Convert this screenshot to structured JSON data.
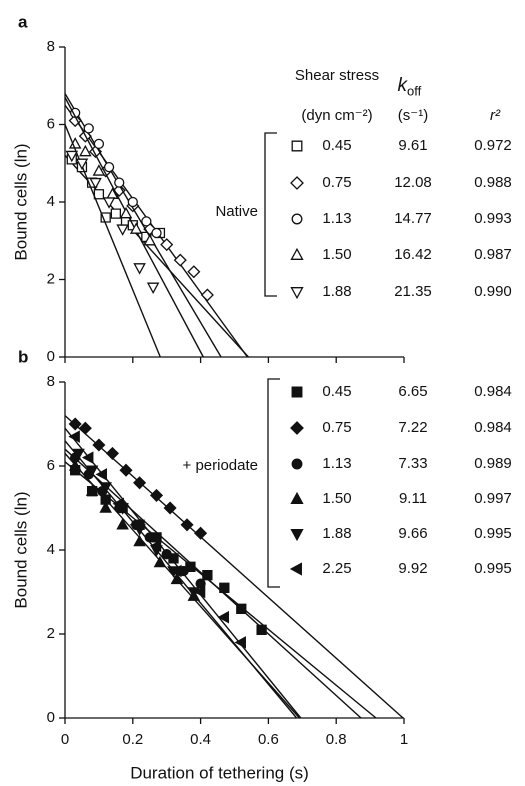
{
  "chart_data": [
    {
      "type": "scatter",
      "panel_label": "a",
      "annotation": "Native",
      "ylabel": "Bound cells (ln)",
      "xlim": [
        0,
        1
      ],
      "ylim": [
        0,
        8
      ],
      "yticks": [
        0,
        2,
        4,
        6,
        8
      ],
      "xticks": [
        0,
        0.2,
        0.4,
        0.6,
        0.8,
        1
      ],
      "xtick_labels": false,
      "filled": false,
      "table_header": {
        "stress": "Shear stress",
        "stress_unit": "(dyn cm⁻²)",
        "koff": "k",
        "koff_sub": "off",
        "koff_unit": "(s⁻¹)",
        "r2": "r²"
      },
      "series": [
        {
          "name": "0.45",
          "marker": "square",
          "color": "#111",
          "koff": 9.61,
          "r2": 0.972,
          "intercept": 5.2,
          "x": [
            0.02,
            0.05,
            0.08,
            0.1,
            0.12,
            0.15,
            0.18,
            0.2,
            0.24,
            0.28
          ],
          "values": [
            5.1,
            4.9,
            4.5,
            4.2,
            3.6,
            3.7,
            3.5,
            3.4,
            3.1,
            3.2
          ]
        },
        {
          "name": "0.75",
          "marker": "diamond",
          "color": "#111",
          "koff": 12.08,
          "r2": 0.988,
          "intercept": 6.5,
          "x": [
            0.03,
            0.06,
            0.09,
            0.12,
            0.16,
            0.2,
            0.25,
            0.3,
            0.34,
            0.38,
            0.42
          ],
          "values": [
            6.1,
            5.7,
            5.3,
            4.8,
            4.3,
            3.9,
            3.3,
            2.9,
            2.5,
            2.2,
            1.6
          ]
        },
        {
          "name": "1.13",
          "marker": "circle",
          "color": "#111",
          "koff": 14.77,
          "r2": 0.993,
          "intercept": 6.8,
          "x": [
            0.03,
            0.07,
            0.1,
            0.13,
            0.16,
            0.2,
            0.24,
            0.27
          ],
          "values": [
            6.3,
            5.9,
            5.5,
            4.9,
            4.5,
            4.0,
            3.5,
            3.2
          ]
        },
        {
          "name": {
            "value": 1.5,
            "label": "1.50"
          },
          "marker": "triangle-up",
          "color": "#111",
          "koff": 16.42,
          "r2": 0.987,
          "intercept": 6.7,
          "x": [
            0.03,
            0.06,
            0.1,
            0.14,
            0.18,
            0.21,
            0.25
          ],
          "values": [
            5.5,
            5.3,
            4.8,
            4.2,
            3.7,
            3.3,
            3.0
          ]
        },
        {
          "name": "1.88",
          "marker": "triangle-down",
          "color": "#111",
          "koff": 21.35,
          "r2": {
            "value": 0.99,
            "label": "0.990"
          },
          "intercept": 6.0,
          "x": [
            0.02,
            0.05,
            0.09,
            0.13,
            0.17,
            0.22,
            0.26
          ],
          "values": [
            5.2,
            5.0,
            4.5,
            4.0,
            3.3,
            2.3,
            1.8
          ]
        }
      ]
    },
    {
      "type": "scatter",
      "panel_label": "b",
      "annotation": "+ periodate",
      "ylabel": "Bound cells (ln)",
      "xlabel": "Duration of tethering (s)",
      "xlim": [
        0,
        1
      ],
      "ylim": [
        0,
        8
      ],
      "yticks": [
        0,
        2,
        4,
        6,
        8
      ],
      "xticks": [
        0,
        0.2,
        0.4,
        0.6,
        0.8,
        1
      ],
      "xtick_labels": true,
      "filled": true,
      "series": [
        {
          "name": "0.45",
          "marker": "square",
          "color": "#111",
          "koff": 6.65,
          "r2": 0.984,
          "intercept": 6.1,
          "x": [
            0.03,
            0.08,
            0.12,
            0.17,
            0.22,
            0.27,
            0.32,
            0.37,
            0.42,
            0.47,
            0.52,
            0.58
          ],
          "values": [
            5.9,
            5.4,
            5.2,
            5.0,
            4.6,
            4.3,
            3.8,
            3.6,
            3.4,
            3.1,
            2.6,
            2.1
          ]
        },
        {
          "name": "0.75",
          "marker": "diamond",
          "color": "#111",
          "koff": 7.22,
          "r2": 0.984,
          "intercept": 7.2,
          "x": [
            0.03,
            0.06,
            0.1,
            0.14,
            0.18,
            0.22,
            0.27,
            0.31,
            0.36,
            0.4
          ],
          "values": [
            7.0,
            6.9,
            6.5,
            6.3,
            5.9,
            5.6,
            5.3,
            5.0,
            4.6,
            4.4
          ]
        },
        {
          "name": "1.13",
          "marker": "circle",
          "color": "#111",
          "koff": 7.33,
          "r2": 0.989,
          "intercept": 6.4,
          "x": [
            0.03,
            0.07,
            0.11,
            0.16,
            0.21,
            0.25,
            0.3,
            0.35,
            0.4
          ],
          "values": [
            6.2,
            5.8,
            5.4,
            5.0,
            4.6,
            4.3,
            3.9,
            3.5,
            3.2
          ]
        },
        {
          "name": {
            "value": 1.5,
            "label": "1.50"
          },
          "marker": "triangle-up",
          "color": "#111",
          "koff": 9.11,
          "r2": 0.997,
          "intercept": 6.3,
          "x": [
            0.03,
            0.08,
            0.12,
            0.17,
            0.22,
            0.28,
            0.33,
            0.38
          ],
          "values": [
            6.0,
            5.4,
            5.0,
            4.6,
            4.2,
            3.7,
            3.3,
            2.9
          ]
        },
        {
          "name": "1.88",
          "marker": "triangle-down",
          "color": "#111",
          "koff": 9.66,
          "r2": 0.995,
          "intercept": 6.6,
          "x": [
            0.04,
            0.08,
            0.12,
            0.17,
            0.22,
            0.27,
            0.32,
            0.38
          ],
          "values": [
            6.3,
            5.9,
            5.5,
            5.0,
            4.5,
            4.0,
            3.5,
            3.0
          ]
        },
        {
          "name": "2.25",
          "marker": "triangle-left",
          "color": "#111",
          "koff": 9.92,
          "r2": 0.995,
          "intercept": 6.9,
          "x": [
            0.03,
            0.07,
            0.11,
            0.16,
            0.21,
            0.27,
            0.33,
            0.4,
            0.47,
            0.52
          ],
          "values": [
            6.7,
            6.2,
            5.8,
            5.1,
            4.6,
            4.1,
            3.5,
            3.0,
            2.4,
            1.8
          ]
        }
      ]
    }
  ]
}
